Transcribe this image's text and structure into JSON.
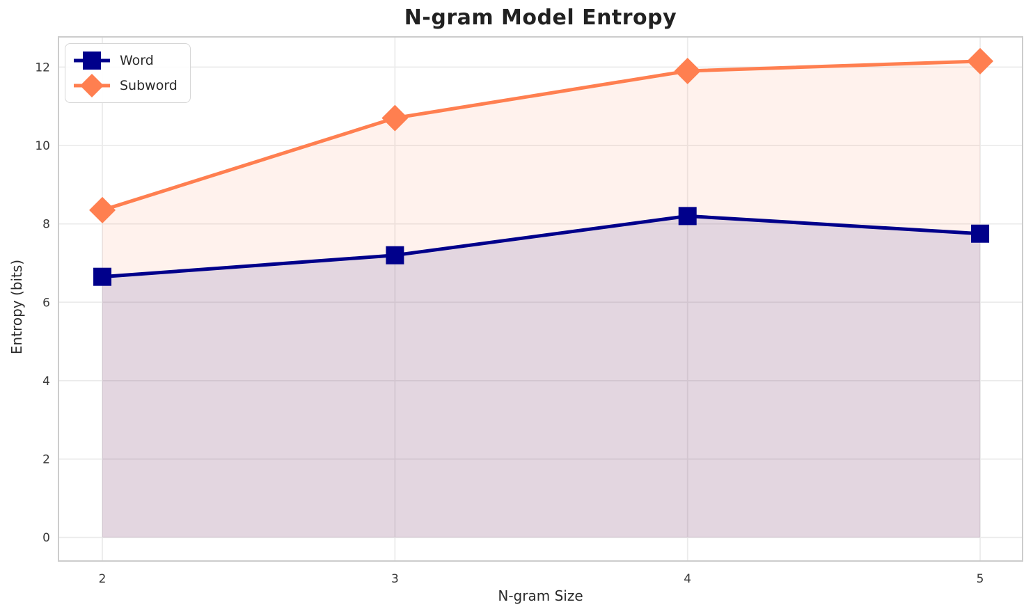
{
  "chart_data": {
    "type": "line",
    "title": "N-gram Model Entropy",
    "xlabel": "N-gram Size",
    "ylabel": "Entropy (bits)",
    "x": [
      2,
      3,
      4,
      5
    ],
    "xtick_labels": [
      "2",
      "3",
      "4",
      "5"
    ],
    "yticks": [
      0,
      2,
      4,
      6,
      8,
      10,
      12
    ],
    "xlim": [
      1.85,
      5.145
    ],
    "ylim": [
      -0.6,
      12.77
    ],
    "grid": true,
    "legend_position": "upper-left",
    "fill_to_zero": true,
    "series": [
      {
        "name": "Word",
        "values": [
          6.65,
          7.2,
          8.2,
          7.75
        ],
        "color": "#00008B",
        "marker": "square",
        "fill_alpha": 0.12
      },
      {
        "name": "Subword",
        "values": [
          8.35,
          10.7,
          11.9,
          12.15
        ],
        "color": "#FF7F50",
        "marker": "diamond",
        "fill_alpha": 0.1
      }
    ],
    "colors": {
      "grid": "#EBEBEB",
      "spine": "#CCCCCC",
      "tick_text": "#3A3A3A",
      "title_text": "#212121"
    }
  }
}
